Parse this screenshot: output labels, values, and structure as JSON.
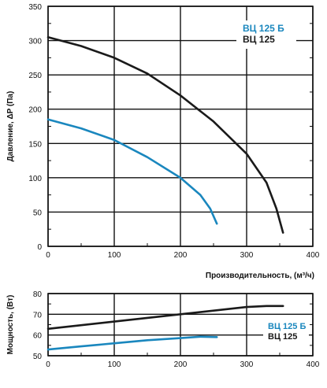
{
  "chart_data": [
    {
      "type": "line",
      "ylabel": "Давление, ΔP (Па)",
      "xlabel": "Производительность, (м³/ч)",
      "xlim": [
        0,
        400
      ],
      "ylim": [
        0,
        350
      ],
      "x_ticks": [
        "0",
        "100",
        "200",
        "300",
        "400"
      ],
      "y_ticks": [
        "0",
        "50",
        "100",
        "150",
        "200",
        "250",
        "300",
        "350"
      ],
      "grid": true,
      "legend_position": "top-right",
      "series": [
        {
          "name": "ВЦ 125 Б",
          "color": "#1a87be",
          "x": [
            0,
            50,
            100,
            150,
            200,
            230,
            245,
            255
          ],
          "y": [
            185,
            172,
            155,
            130,
            100,
            75,
            55,
            33
          ]
        },
        {
          "name": "ВЦ 125",
          "color": "#1a1a1a",
          "x": [
            0,
            50,
            100,
            150,
            200,
            250,
            300,
            330,
            345,
            355
          ],
          "y": [
            305,
            292,
            275,
            252,
            220,
            182,
            135,
            93,
            55,
            20
          ]
        }
      ]
    },
    {
      "type": "line",
      "ylabel": "Мощность, (Вт)",
      "xlim": [
        0,
        400
      ],
      "ylim": [
        50,
        80
      ],
      "x_ticks": [
        "0",
        "100",
        "200",
        "300",
        "400"
      ],
      "y_ticks": [
        "50",
        "60",
        "70",
        "80"
      ],
      "grid": true,
      "legend_position": "bottom-right",
      "series": [
        {
          "name": "ВЦ 125 Б",
          "color": "#1a87be",
          "x": [
            0,
            50,
            100,
            150,
            200,
            230,
            255
          ],
          "y": [
            53,
            54.5,
            56,
            57.5,
            58.5,
            59.2,
            59
          ]
        },
        {
          "name": "ВЦ 125",
          "color": "#1a1a1a",
          "x": [
            0,
            100,
            200,
            300,
            330,
            355
          ],
          "y": [
            63,
            66.5,
            70,
            73.5,
            74,
            74
          ]
        }
      ]
    }
  ]
}
